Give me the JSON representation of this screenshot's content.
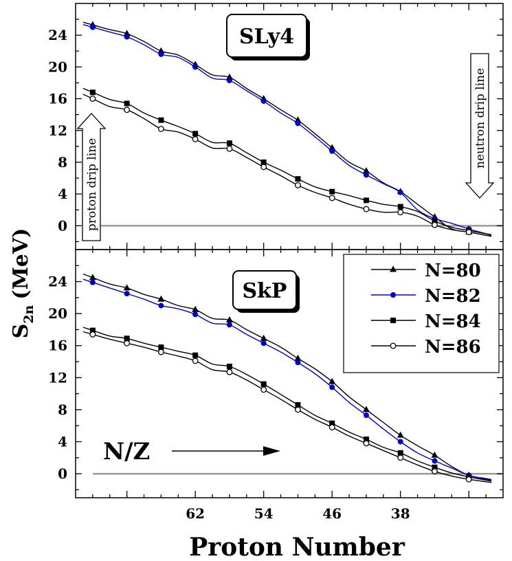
{
  "chart_data": [
    {
      "type": "line",
      "title": "SLy4",
      "xlabel": "Proton Number",
      "ylabel": "S2n (MeV)",
      "xlim": [
        76,
        26
      ],
      "ylim": [
        -3,
        28
      ],
      "yticks": [
        0,
        4,
        8,
        12,
        16,
        20,
        24
      ],
      "xticks": [
        62,
        54,
        46,
        38
      ],
      "annotations": [
        "proton drip line",
        "neutron drip line"
      ],
      "series": [
        {
          "name": "N=80",
          "marker": "triangle",
          "color": "#000000",
          "x": [
            74,
            72,
            70,
            68,
            66,
            64,
            62,
            60,
            58,
            56,
            54,
            52,
            50,
            48,
            46,
            44,
            42,
            40,
            38,
            36,
            34,
            32,
            30,
            28
          ],
          "y": [
            25.3,
            24.7,
            24.2,
            23.2,
            22.0,
            21.5,
            20.3,
            19.0,
            18.7,
            17.3,
            16.0,
            14.6,
            13.3,
            11.6,
            9.8,
            8.0,
            6.9,
            5.4,
            4.3,
            2.7,
            1.1,
            -0.4,
            -0.8,
            -1.2
          ]
        },
        {
          "name": "N=82",
          "marker": "circle",
          "color": "#0000cc",
          "x": [
            74,
            72,
            70,
            68,
            66,
            64,
            62,
            60,
            58,
            56,
            54,
            52,
            50,
            48,
            46,
            44,
            42,
            40,
            38,
            36,
            34,
            32,
            30,
            28
          ],
          "y": [
            25.0,
            24.4,
            23.8,
            22.8,
            21.6,
            21.2,
            20.0,
            18.6,
            18.3,
            17.0,
            15.7,
            14.2,
            12.9,
            11.2,
            9.4,
            7.6,
            6.4,
            5.3,
            4.2,
            2.0,
            0.9,
            0.3,
            -0.4,
            -1.0
          ]
        },
        {
          "name": "N=84",
          "marker": "square",
          "color": "#000000",
          "x": [
            74,
            72,
            70,
            68,
            66,
            64,
            62,
            60,
            58,
            56,
            54,
            52,
            50,
            48,
            46,
            44,
            42,
            40,
            38,
            36,
            34,
            32,
            30,
            28
          ],
          "y": [
            16.8,
            15.9,
            15.4,
            14.2,
            13.3,
            12.5,
            11.6,
            10.5,
            10.4,
            9.2,
            8.0,
            7.0,
            5.9,
            4.9,
            4.3,
            3.8,
            3.2,
            2.7,
            2.4,
            1.8,
            0.6,
            -0.2,
            -0.6,
            -1.0
          ]
        },
        {
          "name": "N=86",
          "marker": "open-circle",
          "color": "#000000",
          "x": [
            74,
            72,
            70,
            68,
            66,
            64,
            62,
            60,
            58,
            56,
            54,
            52,
            50,
            48,
            46,
            44,
            42,
            40,
            38,
            36,
            34,
            32,
            30,
            28
          ],
          "y": [
            16.0,
            15.0,
            14.6,
            13.5,
            12.2,
            11.8,
            10.9,
            9.8,
            9.7,
            8.6,
            7.4,
            6.3,
            5.1,
            4.2,
            3.5,
            2.7,
            2.1,
            1.7,
            1.7,
            1.2,
            0.1,
            -0.5,
            -0.8,
            -1.2
          ]
        }
      ]
    },
    {
      "type": "line",
      "title": "SkP",
      "xlabel": "Proton Number",
      "ylabel": "S2n (MeV)",
      "xlim": [
        76,
        26
      ],
      "ylim": [
        -3,
        28
      ],
      "yticks": [
        0,
        4,
        8,
        12,
        16,
        20,
        24
      ],
      "xticks": [
        62,
        54,
        46,
        38
      ],
      "annotations": [
        "N/Z"
      ],
      "legend_position": "top-right",
      "series": [
        {
          "name": "N=80",
          "marker": "triangle",
          "color": "#000000",
          "x": [
            74,
            72,
            70,
            68,
            66,
            64,
            62,
            60,
            58,
            56,
            54,
            52,
            50,
            48,
            46,
            44,
            42,
            40,
            38,
            36,
            34,
            32,
            30,
            28
          ],
          "y": [
            24.5,
            23.7,
            23.2,
            22.4,
            21.8,
            21.0,
            20.5,
            19.4,
            19.2,
            18.0,
            16.9,
            15.8,
            14.4,
            13.1,
            11.5,
            9.6,
            8.0,
            6.4,
            4.8,
            3.5,
            2.3,
            0.9,
            -0.2,
            -0.6
          ]
        },
        {
          "name": "N=82",
          "marker": "circle",
          "color": "#0000cc",
          "x": [
            74,
            72,
            70,
            68,
            66,
            64,
            62,
            60,
            58,
            56,
            54,
            52,
            50,
            48,
            46,
            44,
            42,
            40,
            38,
            36,
            34,
            32,
            30,
            28
          ],
          "y": [
            23.9,
            23.2,
            22.5,
            21.8,
            21.0,
            20.6,
            19.9,
            18.8,
            18.6,
            17.4,
            16.3,
            15.2,
            13.9,
            12.5,
            10.8,
            8.9,
            7.3,
            5.6,
            4.0,
            2.6,
            1.6,
            0.7,
            -0.2,
            -0.7
          ]
        },
        {
          "name": "N=84",
          "marker": "square",
          "color": "#000000",
          "x": [
            74,
            72,
            70,
            68,
            66,
            64,
            62,
            60,
            58,
            56,
            54,
            52,
            50,
            48,
            46,
            44,
            42,
            40,
            38,
            36,
            34,
            32,
            30,
            28
          ],
          "y": [
            17.9,
            17.2,
            16.9,
            16.3,
            15.8,
            15.3,
            14.8,
            13.7,
            13.4,
            12.4,
            11.2,
            9.9,
            8.6,
            7.3,
            6.3,
            5.2,
            4.3,
            3.3,
            2.6,
            1.6,
            0.8,
            0.1,
            -0.4,
            -0.8
          ]
        },
        {
          "name": "N=86",
          "marker": "open-circle",
          "color": "#000000",
          "x": [
            74,
            72,
            70,
            68,
            66,
            64,
            62,
            60,
            58,
            56,
            54,
            52,
            50,
            48,
            46,
            44,
            42,
            40,
            38,
            36,
            34,
            32,
            30,
            28
          ],
          "y": [
            17.4,
            16.8,
            16.3,
            15.8,
            15.2,
            14.7,
            14.1,
            13.0,
            12.7,
            11.7,
            10.5,
            9.3,
            8.0,
            6.8,
            5.8,
            4.7,
            3.8,
            2.9,
            2.0,
            1.1,
            0.3,
            -0.3,
            -0.7,
            -1.0
          ]
        }
      ]
    }
  ],
  "labels": {
    "ylabel_main": "S",
    "ylabel_sub": "2n",
    "ylabel_unit": "(MeV)",
    "xlabel": "Proton Number",
    "model_top": "SLy4",
    "model_bottom": "SkP",
    "proton_drip": "proton drip line",
    "neutron_drip": "neutron drip line",
    "nz": "N/Z"
  },
  "legend": [
    "N=80",
    "N=82",
    "N=84",
    "N=86"
  ],
  "colors": {
    "blue": "#0000cc",
    "black": "#000000",
    "zero_line": "#999999"
  }
}
